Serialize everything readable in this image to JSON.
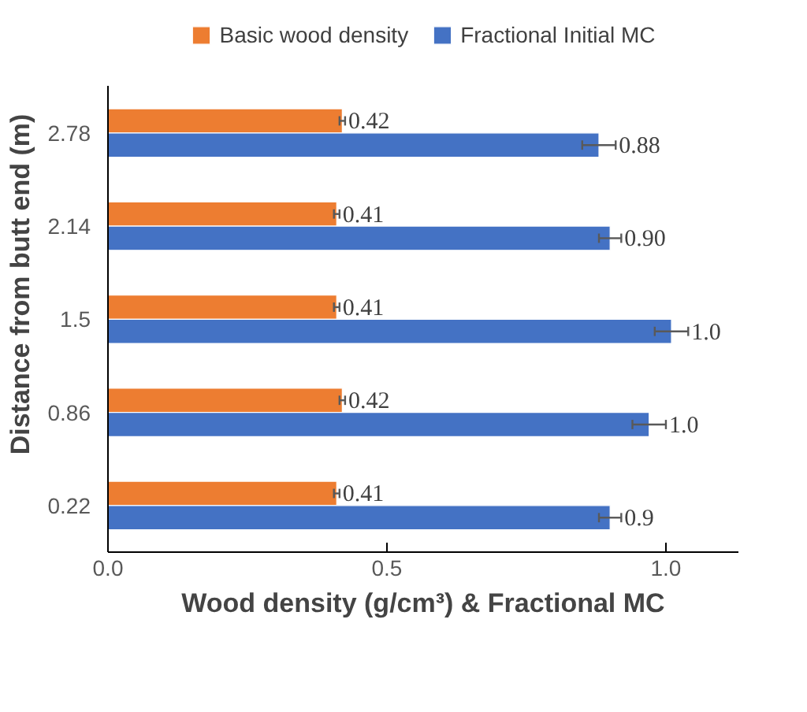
{
  "chart_data": {
    "type": "bar",
    "orientation": "horizontal",
    "xlabel": "Wood density (g/cm³) & Fractional MC",
    "ylabel": "Distance from butt end (m)",
    "categories": [
      "2.78",
      "2.14",
      "1.5",
      "0.86",
      "0.22"
    ],
    "series": [
      {
        "name": "Basic wood density",
        "color": "#ed7d31",
        "values": [
          0.42,
          0.41,
          0.41,
          0.42,
          0.41
        ],
        "errors": [
          0.005,
          0.005,
          0.005,
          0.005,
          0.005
        ],
        "value_labels": [
          "0.42",
          "0.41",
          "0.41",
          "0.42",
          "0.41"
        ]
      },
      {
        "name": "Fractional Initial MC",
        "color": "#4472c4",
        "values": [
          0.88,
          0.9,
          1.01,
          0.97,
          0.9
        ],
        "errors": [
          0.03,
          0.02,
          0.03,
          0.03,
          0.02
        ],
        "value_labels": [
          "0.88",
          "0.90",
          "1.0",
          "1.0",
          "0.9"
        ]
      }
    ],
    "xlim": [
      0,
      1.13
    ],
    "xticks": [
      {
        "value": 0,
        "label": "0.0"
      },
      {
        "value": 0.5,
        "label": "0.5"
      },
      {
        "value": 1,
        "label": "1.0"
      }
    ],
    "grid": false,
    "legend": "top"
  }
}
